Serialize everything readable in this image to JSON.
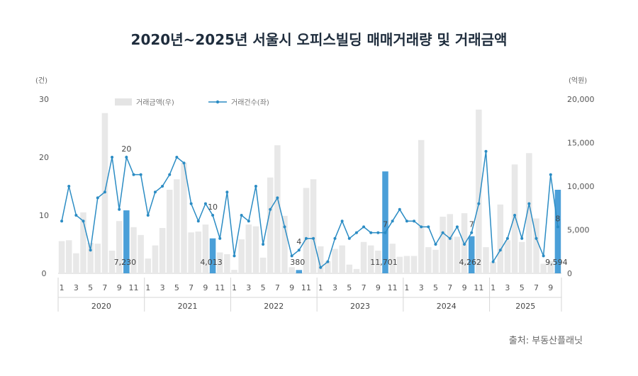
{
  "title": "2020년~2025년 서울시 오피스빌딩 매매거래량 및 거래금액",
  "source": "출처: 부동산플래닛",
  "chart_data": {
    "type": "bar+line",
    "left_axis": {
      "unit": "(건)",
      "ticks": [
        "0",
        "10",
        "20",
        "30"
      ],
      "range": [
        0,
        30
      ]
    },
    "right_axis": {
      "unit": "(억원)",
      "ticks": [
        "0",
        "5,000",
        "10,000",
        "15,000",
        "20,000"
      ],
      "range": [
        0,
        20000
      ]
    },
    "legend": {
      "bar": "거래금액(우)",
      "line": "거래건수(좌)"
    },
    "years": [
      "2020",
      "2021",
      "2022",
      "2023",
      "2024",
      "2025"
    ],
    "month_labels": [
      "1",
      "3",
      "5",
      "7",
      "9",
      "11"
    ],
    "month_labels_2025": [
      "1",
      "3",
      "5",
      "7",
      "9"
    ],
    "x": [
      "2020-01",
      "2020-02",
      "2020-03",
      "2020-04",
      "2020-05",
      "2020-06",
      "2020-07",
      "2020-08",
      "2020-09",
      "2020-10",
      "2020-11",
      "2020-12",
      "2021-01",
      "2021-02",
      "2021-03",
      "2021-04",
      "2021-05",
      "2021-06",
      "2021-07",
      "2021-08",
      "2021-09",
      "2021-10",
      "2021-11",
      "2021-12",
      "2022-01",
      "2022-02",
      "2022-03",
      "2022-04",
      "2022-05",
      "2022-06",
      "2022-07",
      "2022-08",
      "2022-09",
      "2022-10",
      "2022-11",
      "2022-12",
      "2023-01",
      "2023-02",
      "2023-03",
      "2023-04",
      "2023-05",
      "2023-06",
      "2023-07",
      "2023-08",
      "2023-09",
      "2023-10",
      "2023-11",
      "2023-12",
      "2024-01",
      "2024-02",
      "2024-03",
      "2024-04",
      "2024-05",
      "2024-06",
      "2024-07",
      "2024-08",
      "2024-09",
      "2024-10",
      "2024-11",
      "2024-12",
      "2025-01",
      "2025-02",
      "2025-03",
      "2025-04",
      "2025-05",
      "2025-06",
      "2025-07",
      "2025-08",
      "2025-09",
      "2025-10"
    ],
    "series": [
      {
        "name": "거래금액(우)",
        "axis": "right",
        "values": [
          3700,
          3800,
          2300,
          7000,
          3500,
          3400,
          18400,
          2600,
          6000,
          7230,
          5300,
          4400,
          1700,
          3200,
          5200,
          9600,
          10800,
          12700,
          4700,
          4800,
          5600,
          4013,
          2400,
          2200,
          400,
          3900,
          5600,
          5400,
          1800,
          11000,
          14700,
          6600,
          700,
          380,
          9800,
          10800,
          3100,
          1400,
          2800,
          3200,
          1000,
          500,
          3600,
          3200,
          2600,
          11701,
          3400,
          1900,
          2000,
          2000,
          15300,
          3000,
          2700,
          6500,
          6800,
          4200,
          6900,
          4262,
          18800,
          3000,
          1300,
          7900,
          3800,
          12500,
          3600,
          13800,
          6300,
          1100,
          1400,
          9594
        ],
        "highlight": [
          9,
          21,
          33,
          45,
          57,
          69
        ]
      },
      {
        "name": "거래건수(좌)",
        "axis": "left",
        "values": [
          9,
          15,
          10,
          9,
          4,
          13,
          14,
          20,
          11,
          20,
          17,
          17,
          10,
          14,
          15,
          17,
          20,
          19,
          12,
          9,
          12,
          10,
          6,
          14,
          3,
          10,
          9,
          15,
          5,
          11,
          13,
          8,
          3,
          4,
          6,
          6,
          1,
          2,
          6,
          9,
          6,
          7,
          8,
          7,
          7,
          7,
          9,
          11,
          9,
          9,
          8,
          8,
          5,
          7,
          6,
          8,
          5,
          7,
          12,
          21,
          2,
          4,
          6,
          10,
          6,
          12,
          6,
          3,
          17,
          8
        ]
      }
    ],
    "data_labels": [
      {
        "index": 9,
        "value": "7,230",
        "count": "20"
      },
      {
        "index": 21,
        "value": "4,013",
        "count": "10"
      },
      {
        "index": 33,
        "value": "380",
        "count": "4"
      },
      {
        "index": 45,
        "value": "11,701",
        "count": "7"
      },
      {
        "index": 57,
        "value": "4,262",
        "count": "7"
      },
      {
        "index": 69,
        "value": "9,594",
        "count": "8"
      }
    ],
    "colors": {
      "bar": "#e8e8e8",
      "highlight": "#4a9fd8",
      "line": "#2b8cc4"
    },
    "grid": false,
    "legend_position": "top-left"
  }
}
